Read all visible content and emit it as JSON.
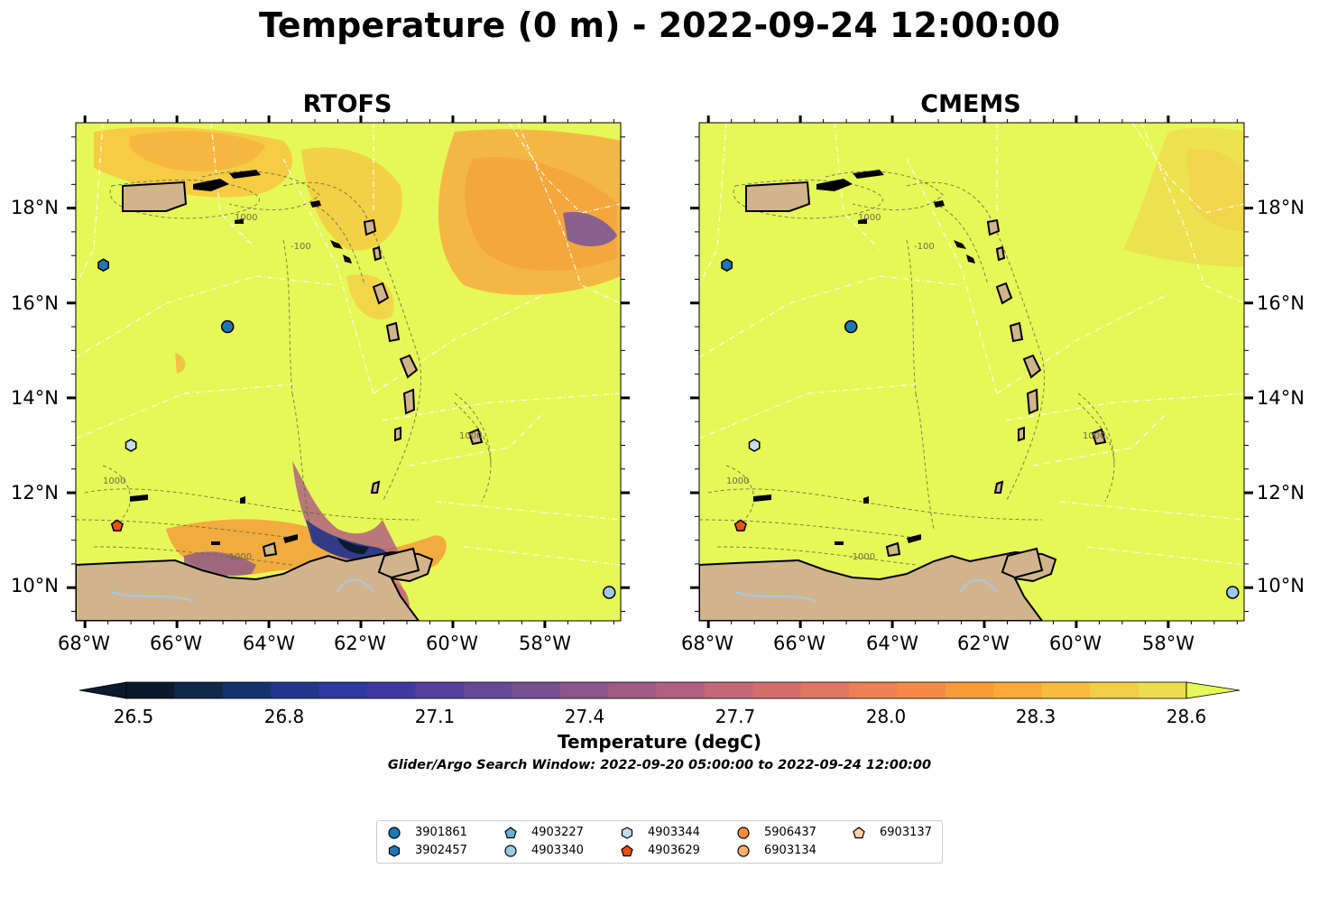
{
  "title": "Temperature (0 m) - 2022-09-24 12:00:00",
  "panels": {
    "left": {
      "title": "RTOFS"
    },
    "right": {
      "title": "CMEMS"
    }
  },
  "lon_ticks": [
    "68°W",
    "66°W",
    "64°W",
    "62°W",
    "60°W",
    "58°W"
  ],
  "lat_ticks": [
    "18°N",
    "16°N",
    "14°N",
    "12°N",
    "10°N"
  ],
  "colorbar": {
    "label": "Temperature (degC)",
    "ticks": [
      "26.5",
      "26.8",
      "27.1",
      "27.4",
      "27.7",
      "28.0",
      "28.3",
      "28.6"
    ],
    "min": 26.4,
    "max": 28.6,
    "colors": [
      "#0b1b2d",
      "#10284a",
      "#16326a",
      "#21368a",
      "#2e3a9e",
      "#3f3aa0",
      "#54409d",
      "#664a98",
      "#784f93",
      "#8b568c",
      "#9d5b86",
      "#b0617f",
      "#c26877",
      "#d26f6d",
      "#df7762",
      "#eb8155",
      "#f38a47",
      "#f69a3c",
      "#f7aa38",
      "#f6bc3e",
      "#f2ce47",
      "#ecde4f"
    ],
    "extend_max_color": "#e6f857"
  },
  "search_window": "Glider/Argo Search Window: 2022-09-20 05:00:00 to 2022-09-24 12:00:00",
  "legend": [
    {
      "id": "3901861",
      "marker": "circle",
      "color": "#1f77b4"
    },
    {
      "id": "3902457",
      "marker": "hexagon",
      "color": "#1f77b4"
    },
    {
      "id": "4903227",
      "marker": "pentagon",
      "color": "#6baed6"
    },
    {
      "id": "4903340",
      "marker": "circle",
      "color": "#9ecae1"
    },
    {
      "id": "4903344",
      "marker": "hexagon",
      "color": "#c6dbef"
    },
    {
      "id": "4903629",
      "marker": "pentagon",
      "color": "#e6550d"
    },
    {
      "id": "5906437",
      "marker": "circle",
      "color": "#fd8d3c"
    },
    {
      "id": "6903134",
      "marker": "circle",
      "color": "#fdae6b"
    },
    {
      "id": "6903137",
      "marker": "pentagon",
      "color": "#fdd0a2"
    }
  ],
  "floats": [
    {
      "id": "3902457",
      "lon": -67.6,
      "lat": 16.8
    },
    {
      "id": "3901861",
      "lon": -64.9,
      "lat": 15.5
    },
    {
      "id": "4903344",
      "lon": -67.0,
      "lat": 13.0
    },
    {
      "id": "4903629",
      "lon": -67.3,
      "lat": 11.3
    },
    {
      "id": "4903340",
      "lon": -56.6,
      "lat": 9.9
    }
  ],
  "contour_labels": [
    "1000",
    "100",
    "-100",
    "-1000"
  ],
  "colors": {
    "sea": "#e6f857",
    "land": "#d2b48c",
    "warm": "#f6b342",
    "river": "#a7c7e7"
  }
}
